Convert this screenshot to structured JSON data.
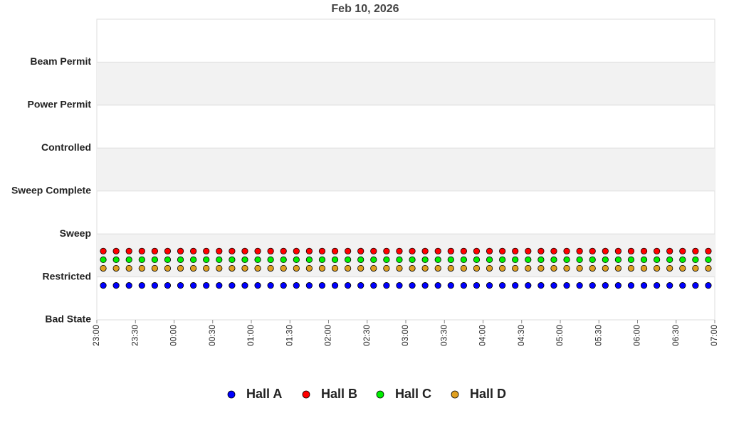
{
  "chart_data": {
    "type": "scatter",
    "title": "Feb 10, 2026",
    "x": [
      "23:05",
      "23:15",
      "23:25",
      "23:35",
      "23:45",
      "23:55",
      "00:05",
      "00:15",
      "00:25",
      "00:35",
      "00:45",
      "00:55",
      "01:05",
      "01:15",
      "01:25",
      "01:35",
      "01:45",
      "01:55",
      "02:05",
      "02:15",
      "02:25",
      "02:35",
      "02:45",
      "02:55",
      "03:05",
      "03:15",
      "03:25",
      "03:35",
      "03:45",
      "03:55",
      "04:05",
      "04:15",
      "04:25",
      "04:35",
      "04:45",
      "04:55",
      "05:05",
      "05:15",
      "05:25",
      "05:35",
      "05:45",
      "05:55",
      "06:05",
      "06:15",
      "06:25",
      "06:35",
      "06:45",
      "06:55"
    ],
    "series": [
      {
        "name": "Hall A",
        "color": "#0000ff",
        "values": [
          0.8,
          0.8,
          0.8,
          0.8,
          0.8,
          0.8,
          0.8,
          0.8,
          0.8,
          0.8,
          0.8,
          0.8,
          0.8,
          0.8,
          0.8,
          0.8,
          0.8,
          0.8,
          0.8,
          0.8,
          0.8,
          0.8,
          0.8,
          0.8,
          0.8,
          0.8,
          0.8,
          0.8,
          0.8,
          0.8,
          0.8,
          0.8,
          0.8,
          0.8,
          0.8,
          0.8,
          0.8,
          0.8,
          0.8,
          0.8,
          0.8,
          0.8,
          0.8,
          0.8,
          0.8,
          0.8,
          0.8,
          0.8
        ]
      },
      {
        "name": "Hall B",
        "color": "#ff0000",
        "values": [
          1.6,
          1.6,
          1.6,
          1.6,
          1.6,
          1.6,
          1.6,
          1.6,
          1.6,
          1.6,
          1.6,
          1.6,
          1.6,
          1.6,
          1.6,
          1.6,
          1.6,
          1.6,
          1.6,
          1.6,
          1.6,
          1.6,
          1.6,
          1.6,
          1.6,
          1.6,
          1.6,
          1.6,
          1.6,
          1.6,
          1.6,
          1.6,
          1.6,
          1.6,
          1.6,
          1.6,
          1.6,
          1.6,
          1.6,
          1.6,
          1.6,
          1.6,
          1.6,
          1.6,
          1.6,
          1.6,
          1.6,
          1.6
        ]
      },
      {
        "name": "Hall C",
        "color": "#00ee00",
        "values": [
          1.4,
          1.4,
          1.4,
          1.4,
          1.4,
          1.4,
          1.4,
          1.4,
          1.4,
          1.4,
          1.4,
          1.4,
          1.4,
          1.4,
          1.4,
          1.4,
          1.4,
          1.4,
          1.4,
          1.4,
          1.4,
          1.4,
          1.4,
          1.4,
          1.4,
          1.4,
          1.4,
          1.4,
          1.4,
          1.4,
          1.4,
          1.4,
          1.4,
          1.4,
          1.4,
          1.4,
          1.4,
          1.4,
          1.4,
          1.4,
          1.4,
          1.4,
          1.4,
          1.4,
          1.4,
          1.4,
          1.4,
          1.4
        ]
      },
      {
        "name": "Hall D",
        "color": "#e0a020",
        "values": [
          1.2,
          1.2,
          1.2,
          1.2,
          1.2,
          1.2,
          1.2,
          1.2,
          1.2,
          1.2,
          1.2,
          1.2,
          1.2,
          1.2,
          1.2,
          1.2,
          1.2,
          1.2,
          1.2,
          1.2,
          1.2,
          1.2,
          1.2,
          1.2,
          1.2,
          1.2,
          1.2,
          1.2,
          1.2,
          1.2,
          1.2,
          1.2,
          1.2,
          1.2,
          1.2,
          1.2,
          1.2,
          1.2,
          1.2,
          1.2,
          1.2,
          1.2,
          1.2,
          1.2,
          1.2,
          1.2,
          1.2,
          1.2
        ]
      }
    ],
    "xlim": [
      "23:00",
      "07:00"
    ],
    "xticks": [
      "23:00",
      "23:30",
      "00:00",
      "00:30",
      "01:00",
      "01:30",
      "02:00",
      "02:30",
      "03:00",
      "03:30",
      "04:00",
      "04:30",
      "05:00",
      "05:30",
      "06:00",
      "06:30",
      "07:00"
    ],
    "ylim": [
      0,
      7
    ],
    "yticks": [
      {
        "value": 0,
        "label": "Bad State"
      },
      {
        "value": 1,
        "label": "Restricted"
      },
      {
        "value": 2,
        "label": "Sweep"
      },
      {
        "value": 3,
        "label": "Sweep Complete"
      },
      {
        "value": 4,
        "label": "Controlled"
      },
      {
        "value": 5,
        "label": "Power Permit"
      },
      {
        "value": 6,
        "label": "Beam Permit"
      }
    ],
    "grid": true,
    "legend": "bottom"
  }
}
